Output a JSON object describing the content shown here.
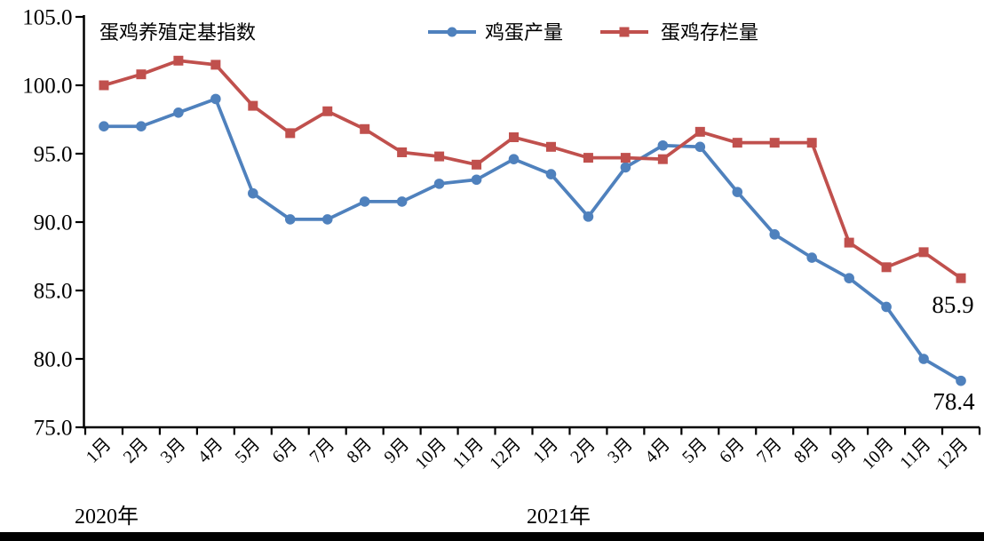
{
  "page": {
    "background_color": "#ffffff",
    "bottom_bar_color": "#000000"
  },
  "chart_data": {
    "type": "line",
    "title": "蛋鸡养殖定基指数",
    "grid": false,
    "legend_position": "top-center",
    "x_axis": {
      "categories": [
        "1月",
        "2月",
        "3月",
        "4月",
        "5月",
        "6月",
        "7月",
        "8月",
        "9月",
        "10月",
        "11月",
        "12月",
        "1月",
        "2月",
        "3月",
        "4月",
        "5月",
        "6月",
        "7月",
        "8月",
        "9月",
        "10月",
        "11月",
        "12月"
      ],
      "year_groups": [
        {
          "label": "2020年",
          "span": "months 1-12"
        },
        {
          "label": "2021年",
          "span": "months 13-24"
        }
      ]
    },
    "y_axis": {
      "min": 75.0,
      "max": 105.0,
      "step": 5.0,
      "tick_labels": [
        "105.0",
        "100.0",
        "95.0",
        "90.0",
        "85.0",
        "80.0",
        "75.0"
      ]
    },
    "series": [
      {
        "name": "鸡蛋产量",
        "color": "#4f81bd",
        "marker": "circle",
        "end_label": "78.4",
        "values": [
          97.0,
          97.0,
          98.0,
          99.0,
          92.1,
          90.2,
          90.2,
          91.5,
          91.5,
          92.8,
          93.1,
          94.6,
          93.5,
          90.4,
          94.0,
          95.6,
          95.5,
          92.2,
          89.1,
          87.4,
          85.9,
          83.8,
          80.0,
          78.4
        ]
      },
      {
        "name": "蛋鸡存栏量",
        "color": "#c0504d",
        "marker": "square",
        "end_label": "85.9",
        "values": [
          100.0,
          100.8,
          101.8,
          101.5,
          98.5,
          96.5,
          98.1,
          96.8,
          95.1,
          94.8,
          94.2,
          96.2,
          95.5,
          94.7,
          94.7,
          94.6,
          96.6,
          95.8,
          95.8,
          95.8,
          88.5,
          86.7,
          87.8,
          85.9
        ]
      }
    ]
  }
}
